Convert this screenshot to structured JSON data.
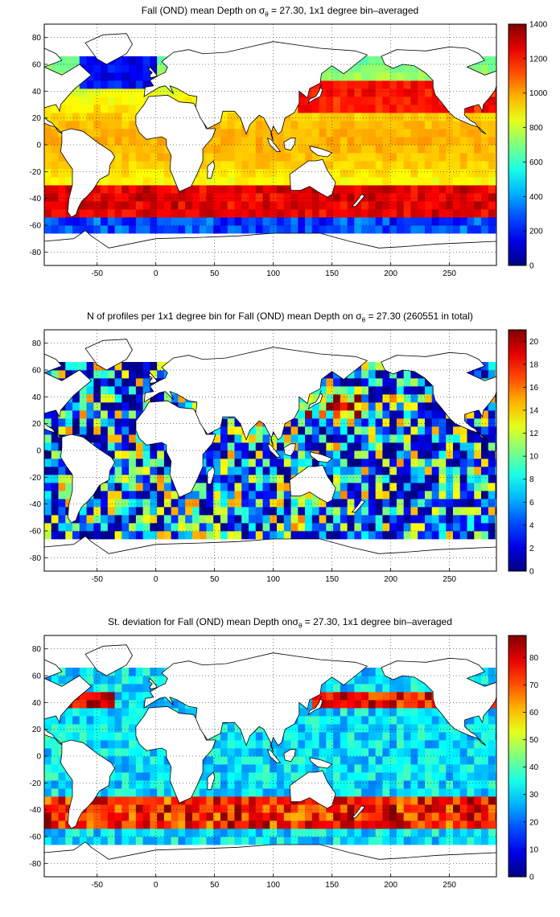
{
  "panels": [
    {
      "title_prefix": "Fall (OND) mean Depth on σ",
      "title_sub": "θ",
      "title_suffix": " = 27.30, 1x1 degree bin–averaged",
      "colorbar_ticks": [
        "0",
        "200",
        "400",
        "600",
        "800",
        "1000",
        "1200",
        "1400"
      ],
      "vmin": 0,
      "vmax": 1400
    },
    {
      "title_prefix": "N of profiles per 1x1 degree bin for Fall (OND) mean Depth on σ",
      "title_sub": "θ",
      "title_suffix": " = 27.30 (260551 in total)",
      "colorbar_ticks": [
        "0",
        "2",
        "4",
        "6",
        "8",
        "10",
        "12",
        "14",
        "16",
        "18",
        "20"
      ],
      "vmin": 0,
      "vmax": 21
    },
    {
      "title_prefix": "St. deviation for Fall (OND) mean Depth onσ",
      "title_sub": "θ",
      "title_suffix": " = 27.30, 1x1 degree bin–averaged",
      "colorbar_ticks": [
        "0",
        "10",
        "20",
        "30",
        "40",
        "50",
        "60",
        "70",
        "80"
      ],
      "vmin": 0,
      "vmax": 88
    }
  ],
  "axes": {
    "x_ticks": [
      "-50",
      "0",
      "50",
      "100",
      "150",
      "200",
      "250"
    ],
    "y_ticks": [
      "80",
      "60",
      "40",
      "20",
      "0",
      "-20",
      "-40",
      "-60",
      "-80"
    ],
    "xlim": [
      -95,
      290
    ],
    "ylim": [
      -90,
      90
    ],
    "grid": "dotted"
  },
  "colormap": "jet"
}
